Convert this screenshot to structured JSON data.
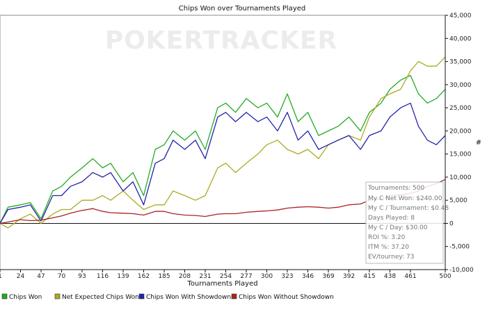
{
  "watermark": "POKERTRACKER",
  "chart_data": {
    "type": "line",
    "title": "Chips Won over Tournaments Played",
    "xlabel": "Tournaments Played",
    "ylabel": "#",
    "xlim": [
      1,
      500
    ],
    "ylim": [
      -10000,
      45000
    ],
    "x_ticks": [
      1,
      24,
      47,
      70,
      93,
      116,
      139,
      162,
      185,
      208,
      231,
      254,
      277,
      300,
      323,
      346,
      369,
      392,
      415,
      438,
      461,
      500
    ],
    "y_ticks": [
      -10000,
      -5000,
      0,
      5000,
      10000,
      15000,
      20000,
      25000,
      30000,
      35000,
      40000,
      45000
    ],
    "y_tick_labels": [
      "-10,000",
      "-5,000",
      "0",
      "5,000",
      "10,000",
      "15,000",
      "20,000",
      "25,000",
      "30,000",
      "35,000",
      "40,000",
      "45,000"
    ],
    "grid": false,
    "legend_position": "bottom",
    "series": [
      {
        "name": "Chips Won",
        "color": "#22aa22",
        "x": [
          1,
          10,
          24,
          35,
          47,
          60,
          70,
          80,
          93,
          105,
          116,
          125,
          139,
          150,
          162,
          175,
          185,
          195,
          208,
          220,
          231,
          245,
          254,
          265,
          277,
          290,
          300,
          312,
          323,
          335,
          346,
          358,
          369,
          380,
          392,
          405,
          415,
          428,
          438,
          450,
          461,
          470,
          480,
          490,
          500
        ],
        "values": [
          0,
          3500,
          4000,
          4500,
          1000,
          7000,
          8000,
          10000,
          12000,
          14000,
          12000,
          13000,
          9000,
          11000,
          6000,
          16000,
          17000,
          20000,
          18000,
          20000,
          16000,
          25000,
          26000,
          24000,
          27000,
          25000,
          26000,
          23000,
          28000,
          22000,
          24000,
          19000,
          20000,
          21000,
          23000,
          20000,
          24000,
          26000,
          29000,
          31000,
          32000,
          28000,
          26000,
          27000,
          29000
        ]
      },
      {
        "name": "Net Expected Chips Won",
        "color": "#aaaa22",
        "x": [
          1,
          10,
          24,
          35,
          47,
          60,
          70,
          80,
          93,
          105,
          116,
          125,
          139,
          150,
          162,
          175,
          185,
          195,
          208,
          220,
          231,
          245,
          254,
          265,
          277,
          290,
          300,
          312,
          323,
          335,
          346,
          358,
          369,
          380,
          392,
          405,
          415,
          428,
          438,
          450,
          461,
          470,
          480,
          490,
          500
        ],
        "values": [
          0,
          -1000,
          1000,
          2000,
          0,
          2000,
          3000,
          3000,
          5000,
          5000,
          6000,
          5000,
          7000,
          5000,
          3000,
          4000,
          4000,
          7000,
          6000,
          5000,
          6000,
          12000,
          13000,
          11000,
          13000,
          15000,
          17000,
          18000,
          16000,
          15000,
          16000,
          14000,
          17000,
          18000,
          19000,
          18000,
          23000,
          27000,
          28000,
          29000,
          33000,
          35000,
          34000,
          34000,
          36000
        ]
      },
      {
        "name": "Chips Won With Showdown",
        "color": "#2222aa",
        "x": [
          1,
          10,
          24,
          35,
          47,
          60,
          70,
          80,
          93,
          105,
          116,
          125,
          139,
          150,
          162,
          175,
          185,
          195,
          208,
          220,
          231,
          245,
          254,
          265,
          277,
          290,
          300,
          312,
          323,
          335,
          346,
          358,
          369,
          380,
          392,
          405,
          415,
          428,
          438,
          450,
          461,
          470,
          480,
          490,
          500
        ],
        "values": [
          0,
          3000,
          3500,
          4000,
          500,
          6000,
          6000,
          8000,
          9000,
          11000,
          10000,
          11000,
          7000,
          9000,
          4000,
          13000,
          14000,
          18000,
          16000,
          18000,
          14000,
          23000,
          24000,
          22000,
          24000,
          22000,
          23000,
          20000,
          24000,
          18000,
          20000,
          16000,
          17000,
          18000,
          19000,
          16000,
          19000,
          20000,
          23000,
          25000,
          26000,
          21000,
          18000,
          17000,
          19000
        ]
      },
      {
        "name": "Chips Won Without Showdown",
        "color": "#aa2222",
        "x": [
          1,
          10,
          24,
          35,
          47,
          60,
          70,
          80,
          93,
          105,
          116,
          125,
          139,
          150,
          162,
          175,
          185,
          195,
          208,
          220,
          231,
          245,
          254,
          265,
          277,
          290,
          300,
          312,
          323,
          335,
          346,
          358,
          369,
          380,
          392,
          405,
          415,
          428,
          438,
          450,
          461,
          470,
          480,
          490,
          500
        ],
        "values": [
          0,
          300,
          800,
          600,
          700,
          1200,
          1600,
          2200,
          2800,
          3200,
          2600,
          2300,
          2200,
          2100,
          1800,
          2600,
          2600,
          2100,
          1800,
          1700,
          1500,
          2000,
          2100,
          2100,
          2400,
          2600,
          2700,
          2900,
          3300,
          3500,
          3600,
          3500,
          3300,
          3500,
          4000,
          4200,
          5000,
          5300,
          6000,
          6200,
          6500,
          7000,
          8000,
          8600,
          9500
        ]
      }
    ]
  },
  "stats_box": {
    "lines": [
      "Tournaments: 500",
      "My C Net Won: $240.00",
      "My C / Tournament: $0.48",
      "Days Played: 8",
      "My C / Day: $30.00",
      "ROI %: 3.20",
      "ITM %: 37.20",
      "EV/tourney: 73"
    ]
  }
}
